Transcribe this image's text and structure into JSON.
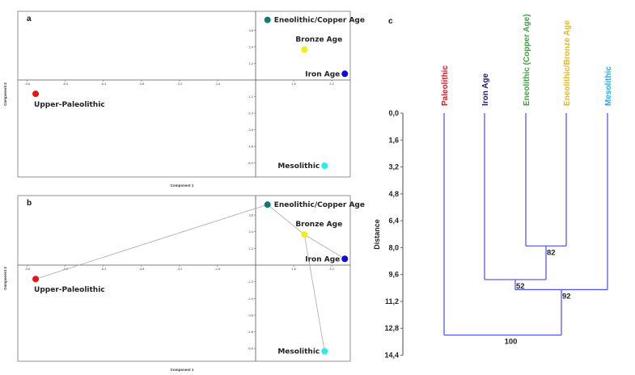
{
  "chart_data": [
    {
      "type": "scatter",
      "panel_label": "a",
      "xlabel": "Component 1",
      "ylabel": "Component 2",
      "x_ticks": [
        "-9,6",
        "-8,0",
        "-6,4",
        "-4,8",
        "-3,2",
        "-1,6",
        "1,6",
        "3,2"
      ],
      "x_tick_values": [
        -9.6,
        -8.0,
        -6.4,
        -4.8,
        -3.2,
        -1.6,
        1.6,
        3.2
      ],
      "y_ticks": [
        "3,6",
        "2,4",
        "1,2",
        "-1,2",
        "-2,4",
        "-3,6",
        "-4,8",
        "-6,0"
      ],
      "y_tick_values": [
        3.6,
        2.4,
        1.2,
        -1.2,
        -2.4,
        -3.6,
        -4.8,
        -6.0
      ],
      "xlim": [
        -10.0,
        4.0
      ],
      "ylim": [
        -7.0,
        5.0
      ],
      "points": [
        {
          "label": "Eneolithic/Copper Age",
          "x": 0.5,
          "y": 4.35,
          "color": "#0e7a72",
          "label_position": "right"
        },
        {
          "label": "Bronze Age",
          "x": 2.05,
          "y": 2.2,
          "color": "#f2ef10",
          "label_position": "top"
        },
        {
          "label": "Iron Age",
          "x": 3.75,
          "y": 0.45,
          "color": "#0a0ae0",
          "label_position": "left"
        },
        {
          "label": "Upper-Paleolithic",
          "x": -9.25,
          "y": -1.0,
          "color": "#ee1111",
          "label_position": "bottom"
        },
        {
          "label": "Mesolithic",
          "x": 2.9,
          "y": -6.2,
          "color": "#22eeee",
          "label_position": "left"
        }
      ],
      "edges": []
    },
    {
      "type": "scatter",
      "panel_label": "b",
      "xlabel": "Component 1",
      "ylabel": "Component 2",
      "x_ticks": [
        "-9,6",
        "-8,0",
        "-6,4",
        "-4,8",
        "-3,2",
        "-1,6",
        "1,6",
        "3,2"
      ],
      "x_tick_values": [
        -9.6,
        -8.0,
        -6.4,
        -4.8,
        -3.2,
        -1.6,
        1.6,
        3.2
      ],
      "y_ticks": [
        "3,6",
        "2,4",
        "1,2",
        "-1,2",
        "-2,4",
        "-3,6",
        "-4,8",
        "-6,0"
      ],
      "y_tick_values": [
        3.6,
        2.4,
        1.2,
        -1.2,
        -2.4,
        -3.6,
        -4.8,
        -6.0
      ],
      "xlim": [
        -10.0,
        4.0
      ],
      "ylim": [
        -7.0,
        5.0
      ],
      "points": [
        {
          "label": "Eneolithic/Copper Age",
          "x": 0.5,
          "y": 4.35,
          "color": "#0e7a72",
          "label_position": "right"
        },
        {
          "label": "Bronze Age",
          "x": 2.05,
          "y": 2.2,
          "color": "#f2ef10",
          "label_position": "top"
        },
        {
          "label": "Iron Age",
          "x": 3.75,
          "y": 0.45,
          "color": "#0a0ae0",
          "label_position": "left"
        },
        {
          "label": "Upper-Paleolithic",
          "x": -9.25,
          "y": -1.0,
          "color": "#ee1111",
          "label_position": "bottom"
        },
        {
          "label": "Mesolithic",
          "x": 2.9,
          "y": -6.2,
          "color": "#22eeee",
          "label_position": "left"
        }
      ],
      "edges": [
        [
          3,
          0
        ],
        [
          0,
          1
        ],
        [
          1,
          2
        ],
        [
          1,
          4
        ]
      ]
    },
    {
      "type": "dendrogram",
      "panel_label": "c",
      "ylabel": "Distance",
      "y_ticks": [
        "0,0",
        "1,6",
        "3,2",
        "4,8",
        "6,4",
        "8,0",
        "9,6",
        "11,2",
        "12,8",
        "14,4"
      ],
      "y_tick_values": [
        0,
        1.6,
        3.2,
        4.8,
        6.4,
        8.0,
        9.6,
        11.2,
        12.8,
        14.4
      ],
      "ylim": [
        0,
        14.4
      ],
      "leaves": [
        {
          "label": "Paleolithic",
          "color": "#e8141e"
        },
        {
          "label": "Iron Age",
          "color": "#1c1c6e"
        },
        {
          "label": "Eneolithic (Copper Age)",
          "color": "#3aa83a"
        },
        {
          "label": "Eneolithic/Bronze Age",
          "color": "#f0b800"
        },
        {
          "label": "Mesolithic",
          "color": "#22aaee"
        }
      ],
      "merges": [
        {
          "left": 2,
          "right": 3,
          "height": 7.9,
          "support": "82"
        },
        {
          "left": 1,
          "right": "m0",
          "height": 9.9,
          "support": "52"
        },
        {
          "left": "m1",
          "right": 4,
          "height": 10.5,
          "support": "92"
        },
        {
          "left": 0,
          "right": "m2",
          "height": 13.2,
          "support": "100"
        }
      ],
      "line_color": "#4a4af0"
    }
  ]
}
